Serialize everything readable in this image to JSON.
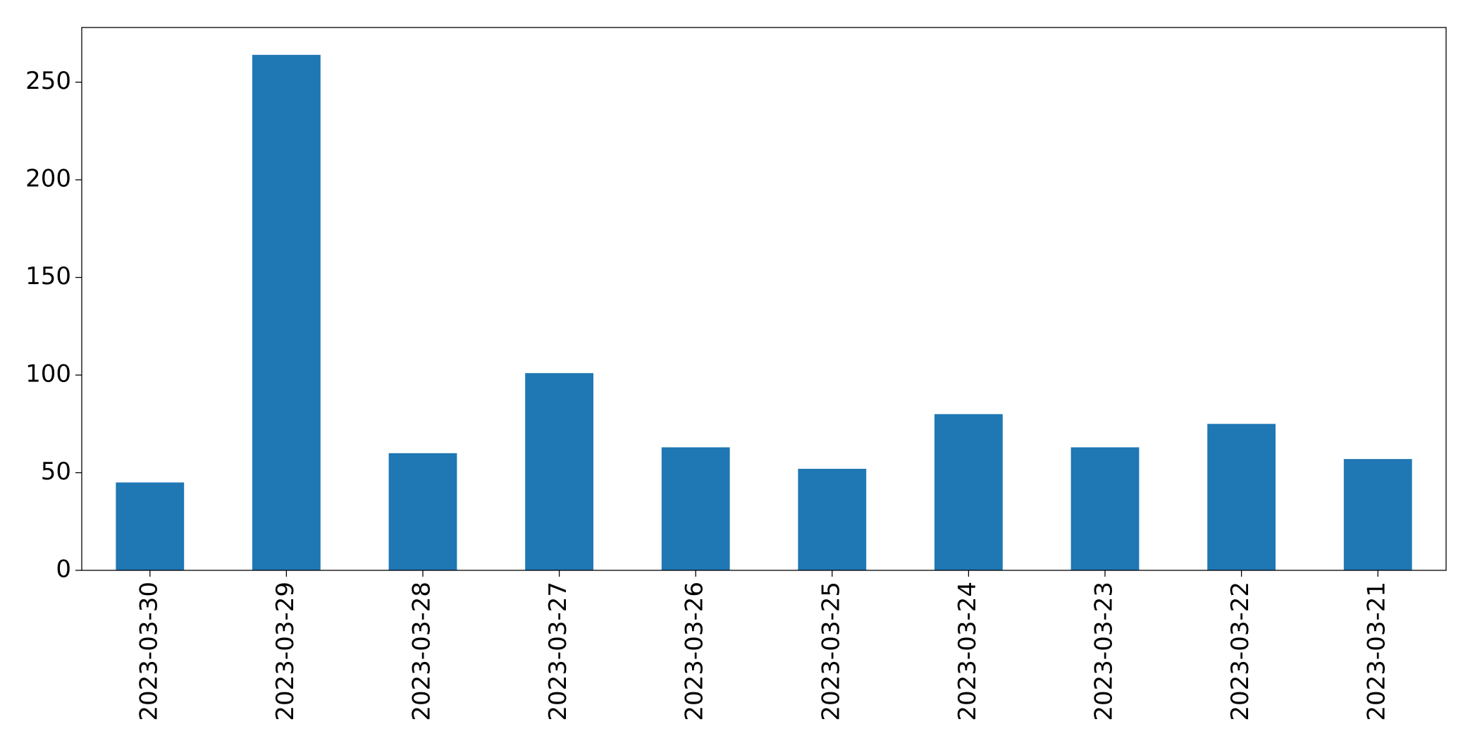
{
  "chart_data": {
    "type": "bar",
    "categories": [
      "2023-03-30",
      "2023-03-29",
      "2023-03-28",
      "2023-03-27",
      "2023-03-26",
      "2023-03-25",
      "2023-03-24",
      "2023-03-23",
      "2023-03-22",
      "2023-03-21"
    ],
    "values": [
      45,
      264,
      60,
      101,
      63,
      52,
      80,
      63,
      75,
      57
    ],
    "color": "#1f77b4",
    "ylim": [
      0,
      278
    ],
    "yticks": [
      0,
      50,
      100,
      150,
      200,
      250
    ],
    "grid": false
  }
}
